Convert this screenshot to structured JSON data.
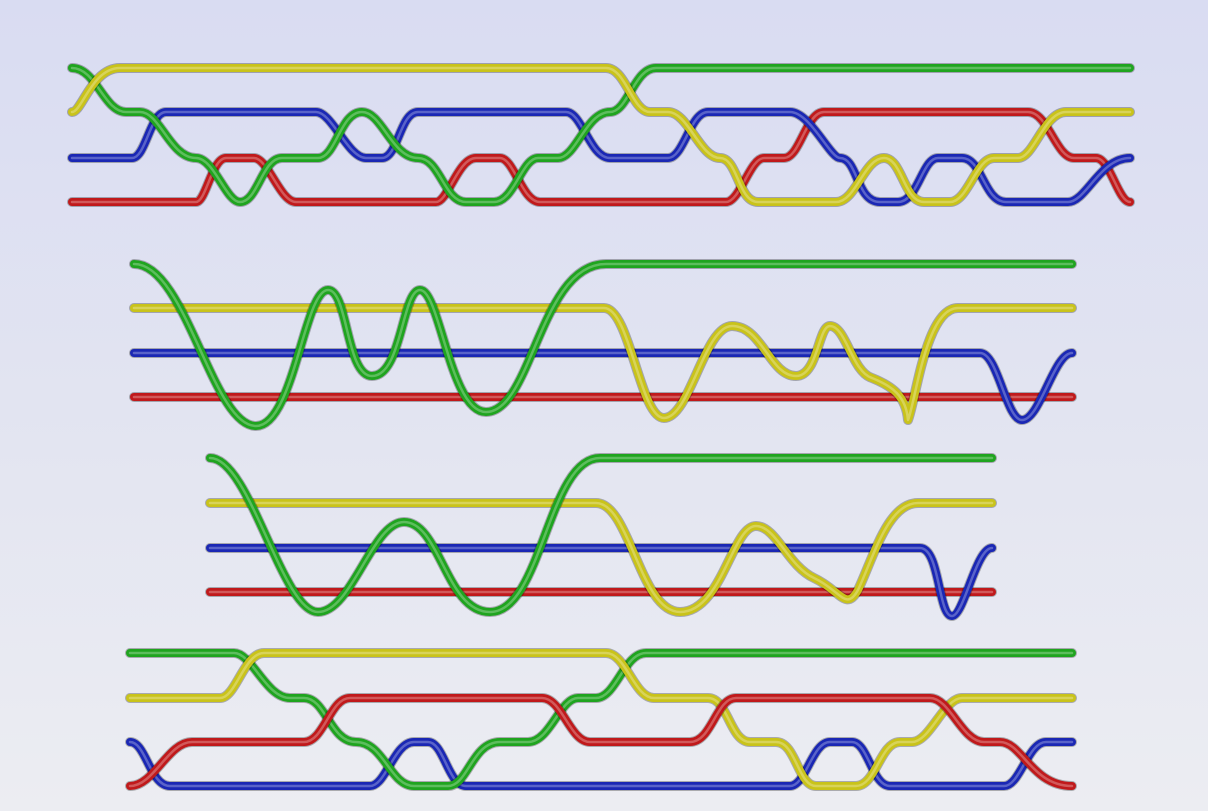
{
  "diagram": {
    "colors": {
      "green": "#1fa41f",
      "yellow": "#c9c31a",
      "blue": "#1a27b4",
      "red": "#c0191b"
    },
    "rows": [
      {
        "id": "row-1",
        "strands": [
          "green",
          "yellow",
          "blue",
          "red"
        ]
      },
      {
        "id": "row-2",
        "strands": [
          "green",
          "yellow",
          "blue",
          "red"
        ]
      },
      {
        "id": "row-3",
        "strands": [
          "green",
          "yellow",
          "blue",
          "red"
        ]
      },
      {
        "id": "row-4",
        "strands": [
          "green",
          "yellow",
          "blue",
          "red"
        ]
      }
    ]
  }
}
